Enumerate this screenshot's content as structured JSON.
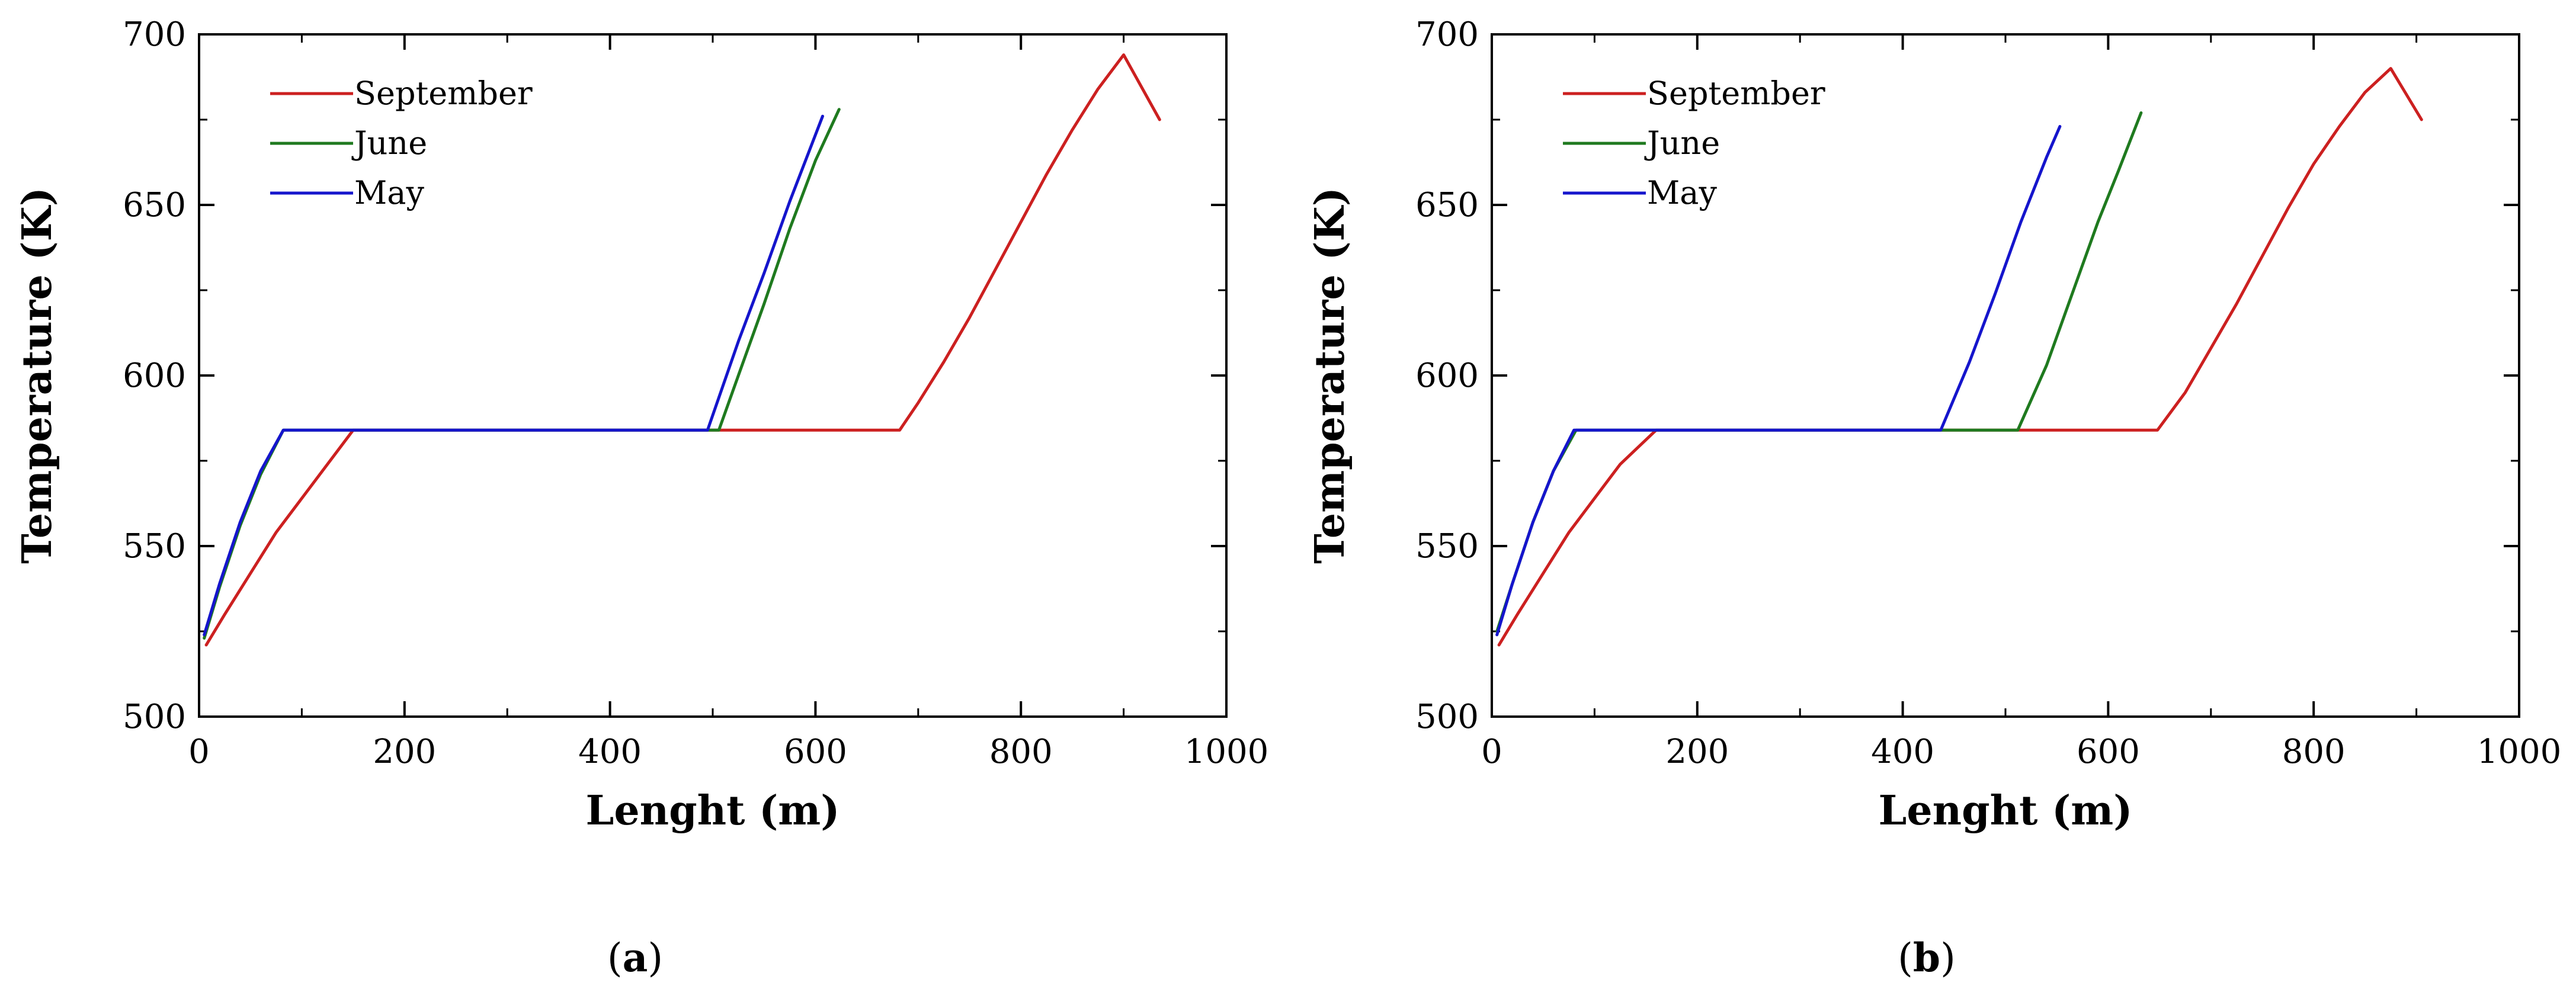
{
  "colors": {
    "september": "#cc2020",
    "june": "#1f7a1f",
    "may": "#1515cc",
    "axis": "#000000"
  },
  "chart_data": [
    {
      "type": "line",
      "panel": "a",
      "caption": {
        "open": "(",
        "letter": "a",
        "close": ")"
      },
      "xlabel": "Lenght (m)",
      "ylabel": "Temperature (K)",
      "xlim": [
        0,
        1000
      ],
      "ylim": [
        500,
        700
      ],
      "xticks": [
        0,
        200,
        400,
        600,
        800,
        1000
      ],
      "yticks": [
        500,
        550,
        600,
        650,
        700
      ],
      "legend_position": "top-left",
      "series": [
        {
          "name": "September",
          "color_key": "september",
          "x": [
            7,
            25,
            50,
            75,
            100,
            125,
            150,
            200,
            300,
            400,
            500,
            600,
            682,
            700,
            725,
            750,
            775,
            800,
            825,
            850,
            875,
            900,
            935
          ],
          "y": [
            521,
            530,
            542,
            554,
            564,
            574,
            584,
            584,
            584,
            584,
            584,
            584,
            584,
            592,
            604,
            617,
            631,
            645,
            659,
            672,
            684,
            694,
            675
          ]
        },
        {
          "name": "June",
          "color_key": "june",
          "x": [
            5,
            20,
            40,
            60,
            82,
            200,
            300,
            400,
            506,
            525,
            550,
            575,
            600,
            623
          ],
          "y": [
            523,
            538,
            556,
            571,
            584,
            584,
            584,
            584,
            584,
            600,
            621,
            643,
            663,
            678
          ]
        },
        {
          "name": "May",
          "color_key": "may",
          "x": [
            5,
            20,
            40,
            60,
            82,
            200,
            300,
            400,
            495,
            525,
            550,
            575,
            607
          ],
          "y": [
            524,
            539,
            557,
            572,
            584,
            584,
            584,
            584,
            584,
            610,
            630,
            651,
            676
          ]
        }
      ]
    },
    {
      "type": "line",
      "panel": "b",
      "caption": {
        "open": "(",
        "letter": "b",
        "close": ")"
      },
      "xlabel": "Lenght (m)",
      "ylabel": "Temperature (K)",
      "xlim": [
        0,
        1000
      ],
      "ylim": [
        500,
        700
      ],
      "xticks": [
        0,
        200,
        400,
        600,
        800,
        1000
      ],
      "yticks": [
        500,
        550,
        600,
        650,
        700
      ],
      "legend_position": "top-left",
      "series": [
        {
          "name": "September",
          "color_key": "september",
          "x": [
            7,
            25,
            50,
            75,
            100,
            125,
            160,
            200,
            300,
            400,
            500,
            600,
            648,
            675,
            700,
            725,
            750,
            775,
            800,
            825,
            850,
            875,
            905
          ],
          "y": [
            521,
            530,
            542,
            554,
            564,
            574,
            584,
            584,
            584,
            584,
            584,
            584,
            584,
            595,
            608,
            621,
            635,
            649,
            662,
            673,
            683,
            690,
            675
          ]
        },
        {
          "name": "June",
          "color_key": "june",
          "x": [
            5,
            20,
            40,
            60,
            82,
            200,
            300,
            400,
            512,
            540,
            565,
            590,
            610,
            632
          ],
          "y": [
            525,
            539,
            557,
            572,
            584,
            584,
            584,
            584,
            584,
            603,
            624,
            645,
            660,
            677
          ]
        },
        {
          "name": "May",
          "color_key": "may",
          "x": [
            5,
            20,
            40,
            60,
            80,
            200,
            300,
            400,
            437,
            465,
            490,
            515,
            540,
            553
          ],
          "y": [
            524,
            539,
            557,
            572,
            584,
            584,
            584,
            584,
            584,
            604,
            624,
            645,
            664,
            673
          ]
        }
      ]
    }
  ]
}
